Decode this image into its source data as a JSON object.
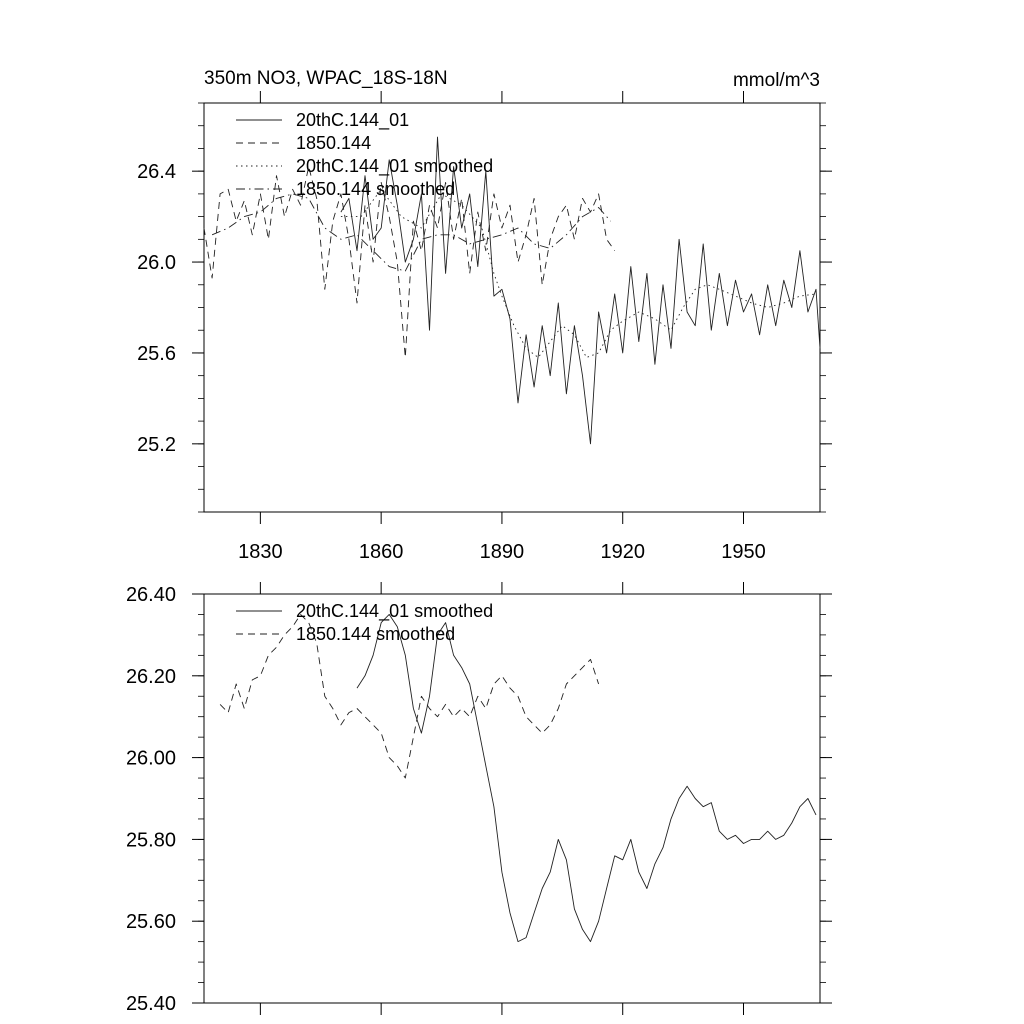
{
  "chart_data": [
    {
      "type": "line",
      "title": "350m NO3, WPAC_18S-18N",
      "units": "mmol/m^3",
      "xlabel": "",
      "ylabel": "",
      "xlim": [
        1816,
        1969
      ],
      "ylim": [
        24.9,
        26.7
      ],
      "xticks": [
        1830,
        1860,
        1890,
        1920,
        1950
      ],
      "xtick_labels": [
        "1830",
        "1860",
        "1890",
        "1920",
        "1950"
      ],
      "yticks": [
        25.2,
        25.6,
        26.0,
        26.4
      ],
      "ytick_labels": [
        "25.2",
        "25.6",
        "26.0",
        "26.4"
      ],
      "legend": [
        "20thC.144_01",
        "1850.144",
        "20thC.144_01 smoothed",
        "1850.144 smoothed"
      ],
      "legend_position": "top-left",
      "series": [
        {
          "name": "20thC.144_01",
          "style": "solid",
          "x": [
            1850,
            1852,
            1854,
            1856,
            1858,
            1860,
            1862,
            1864,
            1866,
            1868,
            1870,
            1872,
            1874,
            1876,
            1878,
            1880,
            1882,
            1884,
            1886,
            1888,
            1890,
            1892,
            1894,
            1896,
            1898,
            1900,
            1902,
            1904,
            1906,
            1908,
            1910,
            1912,
            1914,
            1916,
            1918,
            1920,
            1922,
            1924,
            1926,
            1928,
            1930,
            1932,
            1934,
            1936,
            1938,
            1940,
            1942,
            1944,
            1946,
            1948,
            1950,
            1952,
            1954,
            1956,
            1958,
            1960,
            1962,
            1964,
            1966,
            1968,
            1969
          ],
          "values": [
            26.22,
            26.28,
            26.05,
            26.38,
            26.1,
            26.15,
            26.45,
            26.25,
            26.0,
            26.1,
            26.3,
            25.7,
            26.55,
            25.95,
            26.42,
            26.15,
            26.3,
            25.98,
            26.4,
            25.85,
            25.88,
            25.75,
            25.38,
            25.68,
            25.45,
            25.72,
            25.5,
            25.82,
            25.42,
            25.72,
            25.5,
            25.2,
            25.78,
            25.6,
            25.86,
            25.6,
            25.98,
            25.65,
            25.95,
            25.55,
            25.9,
            25.62,
            26.1,
            25.78,
            25.72,
            26.08,
            25.7,
            25.95,
            25.72,
            25.92,
            25.78,
            25.86,
            25.68,
            25.9,
            25.72,
            25.92,
            25.8,
            26.05,
            25.78,
            25.88,
            25.62
          ]
        },
        {
          "name": "1850.144",
          "style": "dashed",
          "x": [
            1816,
            1818,
            1820,
            1822,
            1824,
            1826,
            1828,
            1830,
            1832,
            1834,
            1836,
            1838,
            1840,
            1842,
            1844,
            1846,
            1848,
            1850,
            1852,
            1854,
            1856,
            1858,
            1860,
            1862,
            1864,
            1866,
            1868,
            1870,
            1872,
            1874,
            1876,
            1878,
            1880,
            1882,
            1884,
            1886,
            1888,
            1890,
            1892,
            1894,
            1896,
            1898,
            1900,
            1902,
            1904,
            1906,
            1908,
            1910,
            1912,
            1914,
            1916,
            1918
          ],
          "values": [
            26.15,
            25.93,
            26.3,
            26.32,
            26.18,
            26.27,
            26.12,
            26.3,
            26.1,
            26.38,
            26.2,
            26.32,
            26.25,
            26.42,
            26.28,
            25.88,
            26.18,
            26.3,
            26.1,
            25.82,
            26.25,
            26.0,
            26.35,
            26.2,
            26.0,
            25.58,
            26.18,
            26.05,
            26.25,
            26.15,
            26.35,
            26.1,
            26.28,
            25.95,
            26.22,
            26.05,
            26.3,
            26.15,
            26.25,
            26.0,
            26.12,
            26.28,
            25.9,
            26.1,
            26.2,
            26.25,
            26.1,
            26.28,
            26.22,
            26.3,
            26.1,
            26.05
          ]
        },
        {
          "name": "20thC.144_01 smoothed",
          "style": "dotted",
          "x": [
            1850,
            1855,
            1860,
            1865,
            1870,
            1875,
            1880,
            1885,
            1888,
            1890,
            1893,
            1896,
            1899,
            1902,
            1905,
            1908,
            1911,
            1914,
            1917,
            1920,
            1924,
            1928,
            1932,
            1935,
            1938,
            1941,
            1944,
            1948,
            1952,
            1956,
            1960,
            1964,
            1968
          ],
          "values": [
            26.2,
            26.2,
            26.32,
            26.2,
            26.15,
            26.3,
            26.25,
            26.15,
            25.95,
            25.85,
            25.72,
            25.62,
            25.58,
            25.65,
            25.72,
            25.68,
            25.58,
            25.6,
            25.7,
            25.74,
            25.78,
            25.75,
            25.7,
            25.8,
            25.88,
            25.9,
            25.88,
            25.85,
            25.82,
            25.8,
            25.82,
            25.85,
            25.86
          ]
        },
        {
          "name": "1850.144 smoothed",
          "style": "dashdot",
          "x": [
            1818,
            1822,
            1826,
            1830,
            1834,
            1838,
            1842,
            1846,
            1850,
            1854,
            1858,
            1862,
            1866,
            1870,
            1874,
            1878,
            1882,
            1886,
            1890,
            1894,
            1898,
            1902,
            1906,
            1910,
            1914,
            1917
          ],
          "values": [
            26.12,
            26.15,
            26.2,
            26.22,
            26.28,
            26.3,
            26.28,
            26.15,
            26.1,
            26.12,
            26.05,
            25.98,
            25.96,
            26.1,
            26.12,
            26.12,
            26.08,
            26.1,
            26.12,
            26.15,
            26.08,
            26.06,
            26.12,
            26.2,
            26.24,
            26.18
          ]
        }
      ]
    },
    {
      "type": "line",
      "title": "",
      "xlabel": "",
      "ylabel": "",
      "xlim": [
        1816,
        1969
      ],
      "ylim": [
        25.4,
        26.4
      ],
      "xticks": [
        1830,
        1860,
        1890,
        1920,
        1950
      ],
      "xtick_labels": [],
      "yticks": [
        25.4,
        25.6,
        25.8,
        26.0,
        26.2,
        26.4
      ],
      "ytick_labels": [
        "25.40",
        "25.60",
        "25.80",
        "26.00",
        "26.20",
        "26.40"
      ],
      "legend": [
        "20thC.144_01 smoothed",
        "1850.144 smoothed"
      ],
      "legend_position": "top-left",
      "series": [
        {
          "name": "20thC.144_01 smoothed",
          "style": "solid",
          "x": [
            1854,
            1856,
            1858,
            1860,
            1862,
            1864,
            1866,
            1868,
            1870,
            1872,
            1874,
            1876,
            1878,
            1880,
            1882,
            1884,
            1886,
            1888,
            1890,
            1892,
            1894,
            1896,
            1898,
            1900,
            1902,
            1904,
            1906,
            1908,
            1910,
            1912,
            1914,
            1916,
            1918,
            1920,
            1922,
            1924,
            1926,
            1928,
            1930,
            1932,
            1934,
            1936,
            1938,
            1940,
            1942,
            1944,
            1946,
            1948,
            1950,
            1952,
            1954,
            1956,
            1958,
            1960,
            1962,
            1964,
            1966,
            1968
          ],
          "values": [
            26.17,
            26.2,
            26.25,
            26.33,
            26.35,
            26.32,
            26.25,
            26.12,
            26.06,
            26.15,
            26.3,
            26.33,
            26.25,
            26.22,
            26.18,
            26.08,
            25.98,
            25.88,
            25.72,
            25.62,
            25.55,
            25.56,
            25.62,
            25.68,
            25.72,
            25.8,
            25.75,
            25.63,
            25.58,
            25.55,
            25.6,
            25.68,
            25.76,
            25.75,
            25.8,
            25.72,
            25.68,
            25.74,
            25.78,
            25.85,
            25.9,
            25.93,
            25.9,
            25.88,
            25.89,
            25.82,
            25.8,
            25.81,
            25.79,
            25.8,
            25.8,
            25.82,
            25.8,
            25.81,
            25.84,
            25.88,
            25.9,
            25.86
          ]
        },
        {
          "name": "1850.144 smoothed",
          "style": "dashed",
          "x": [
            1820,
            1822,
            1824,
            1826,
            1828,
            1830,
            1832,
            1834,
            1836,
            1838,
            1840,
            1842,
            1844,
            1846,
            1848,
            1850,
            1852,
            1854,
            1856,
            1858,
            1860,
            1862,
            1864,
            1866,
            1868,
            1870,
            1872,
            1874,
            1876,
            1878,
            1880,
            1882,
            1884,
            1886,
            1888,
            1890,
            1892,
            1894,
            1896,
            1898,
            1900,
            1902,
            1904,
            1906,
            1908,
            1910,
            1912,
            1914
          ],
          "values": [
            26.13,
            26.11,
            26.18,
            26.12,
            26.19,
            26.2,
            26.25,
            26.27,
            26.3,
            26.32,
            26.35,
            26.33,
            26.28,
            26.15,
            26.12,
            26.08,
            26.11,
            26.12,
            26.1,
            26.08,
            26.06,
            26.0,
            25.98,
            25.95,
            26.05,
            26.15,
            26.12,
            26.1,
            26.13,
            26.1,
            26.12,
            26.1,
            26.15,
            26.12,
            26.18,
            26.2,
            26.17,
            26.15,
            26.1,
            26.08,
            26.06,
            26.08,
            26.12,
            26.18,
            26.2,
            26.22,
            26.24,
            26.18
          ]
        }
      ]
    }
  ]
}
